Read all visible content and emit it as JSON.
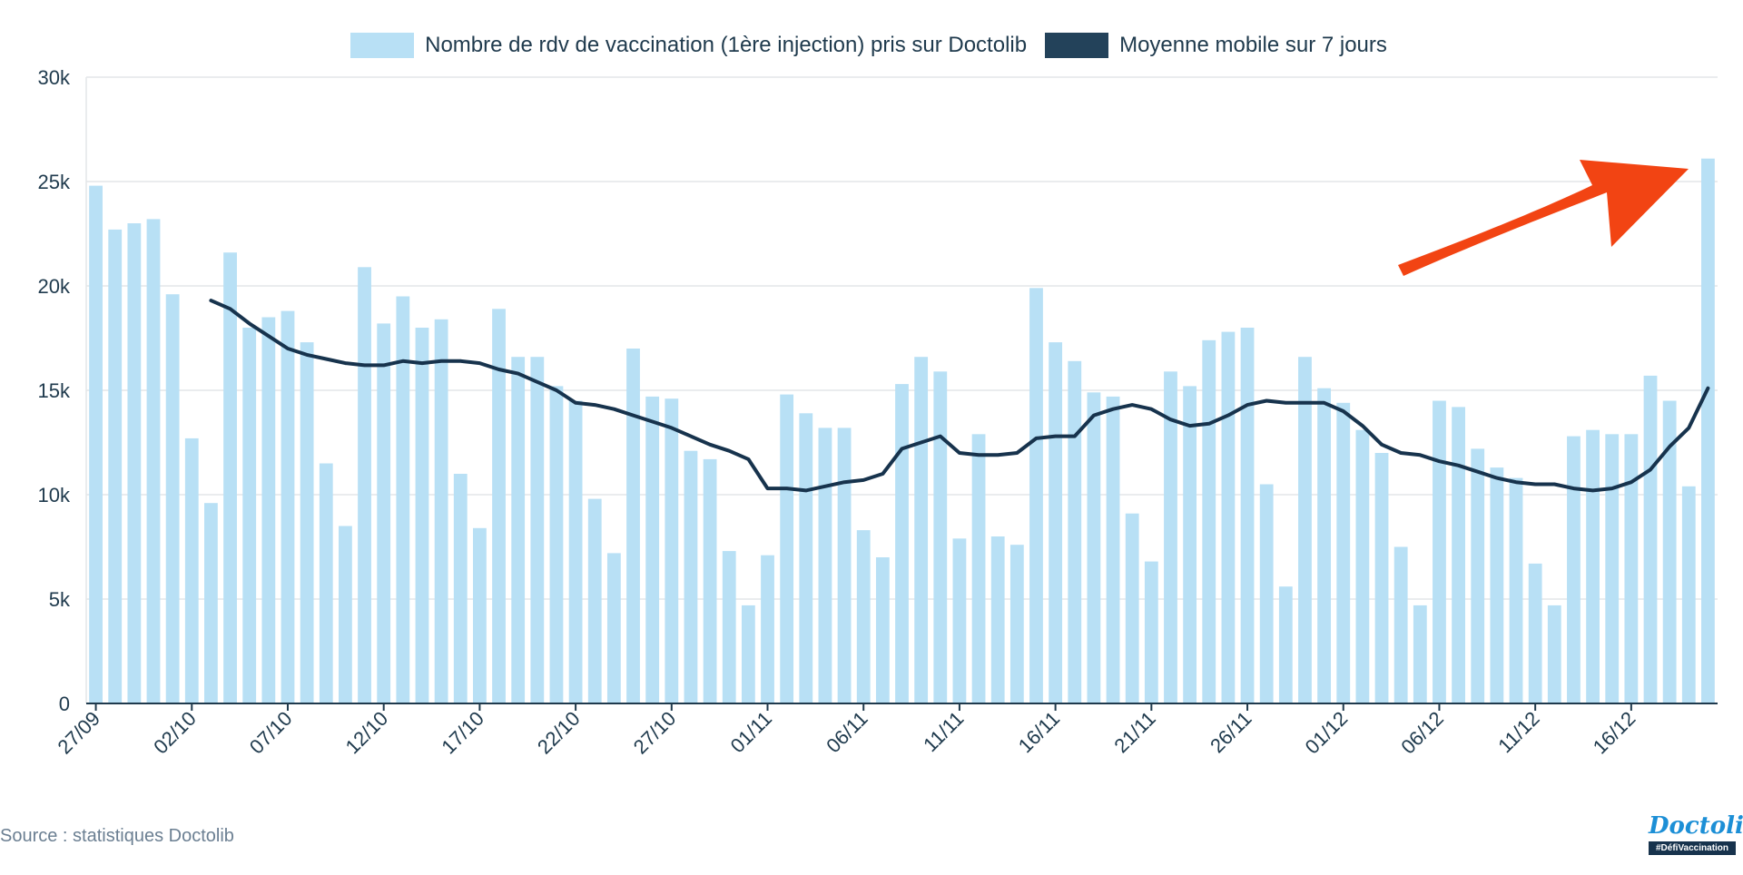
{
  "legend": {
    "bars_label": "Nombre de rdv de vaccination (1ère injection) pris sur Doctolib",
    "line_label": "Moyenne mobile sur 7 jours"
  },
  "source": "Source : statistiques Doctolib",
  "logo": {
    "word": "Doctolib",
    "tag": "#DéfiVaccination"
  },
  "colors": {
    "bar": "#b8e0f5",
    "line": "#17334d",
    "grid": "#e3e6e9",
    "axis": "#1f3a4d",
    "arrow": "#f24413",
    "brand": "#1c8fd6"
  },
  "chart_data": {
    "type": "bar",
    "ylim": [
      0,
      30000
    ],
    "y_ticks": [
      0,
      5000,
      10000,
      15000,
      20000,
      25000,
      30000
    ],
    "y_tick_labels": [
      "0",
      "5k",
      "10k",
      "15k",
      "20k",
      "25k",
      "30k"
    ],
    "x_tick_labels": [
      "27/09",
      "02/10",
      "07/10",
      "12/10",
      "17/10",
      "22/10",
      "27/10",
      "01/11",
      "06/11",
      "11/11",
      "16/11",
      "21/11",
      "26/11",
      "01/12",
      "06/12",
      "11/12",
      "16/12"
    ],
    "x_tick_every": 5,
    "annotation": "arrow pointing to last bar",
    "series": [
      {
        "name": "Nombre de rdv de vaccination (1ère injection) pris sur Doctolib",
        "type": "bar",
        "values": [
          24800,
          22700,
          23000,
          23200,
          19600,
          12700,
          9600,
          21600,
          18000,
          18500,
          18800,
          17300,
          11500,
          8500,
          20900,
          18200,
          19500,
          18000,
          18400,
          11000,
          8400,
          18900,
          16600,
          16600,
          15200,
          14500,
          9800,
          7200,
          17000,
          14700,
          14600,
          12100,
          11700,
          7300,
          4700,
          7100,
          14800,
          13900,
          13200,
          13200,
          8300,
          7000,
          15300,
          16600,
          15900,
          7900,
          12900,
          8000,
          7600,
          19900,
          17300,
          16400,
          14900,
          14700,
          9100,
          6800,
          15900,
          15200,
          17400,
          17800,
          18000,
          10500,
          5600,
          16600,
          15100,
          14400,
          13100,
          12000,
          7500,
          4700,
          14500,
          14200,
          12200,
          11300,
          10800,
          6700,
          4700,
          12800,
          13100,
          12900,
          12900,
          15700,
          14500,
          10400,
          26100
        ]
      },
      {
        "name": "Moyenne mobile sur 7 jours",
        "type": "line",
        "values": [
          null,
          null,
          null,
          null,
          null,
          null,
          19300,
          18900,
          18200,
          17600,
          17000,
          16700,
          16500,
          16300,
          16200,
          16200,
          16400,
          16300,
          16400,
          16400,
          16300,
          16000,
          15800,
          15400,
          15000,
          14400,
          14300,
          14100,
          13800,
          13500,
          13200,
          12800,
          12400,
          12100,
          11700,
          10300,
          10300,
          10200,
          10400,
          10600,
          10700,
          11000,
          12200,
          12500,
          12800,
          12000,
          11900,
          11900,
          12000,
          12700,
          12800,
          12800,
          13800,
          14100,
          14300,
          14100,
          13600,
          13300,
          13400,
          13800,
          14300,
          14500,
          14400,
          14400,
          14400,
          14000,
          13300,
          12400,
          12000,
          11900,
          11600,
          11400,
          11100,
          10800,
          10600,
          10500,
          10500,
          10300,
          10200,
          10300,
          10600,
          11200,
          12300,
          13200,
          15100
        ]
      }
    ]
  }
}
